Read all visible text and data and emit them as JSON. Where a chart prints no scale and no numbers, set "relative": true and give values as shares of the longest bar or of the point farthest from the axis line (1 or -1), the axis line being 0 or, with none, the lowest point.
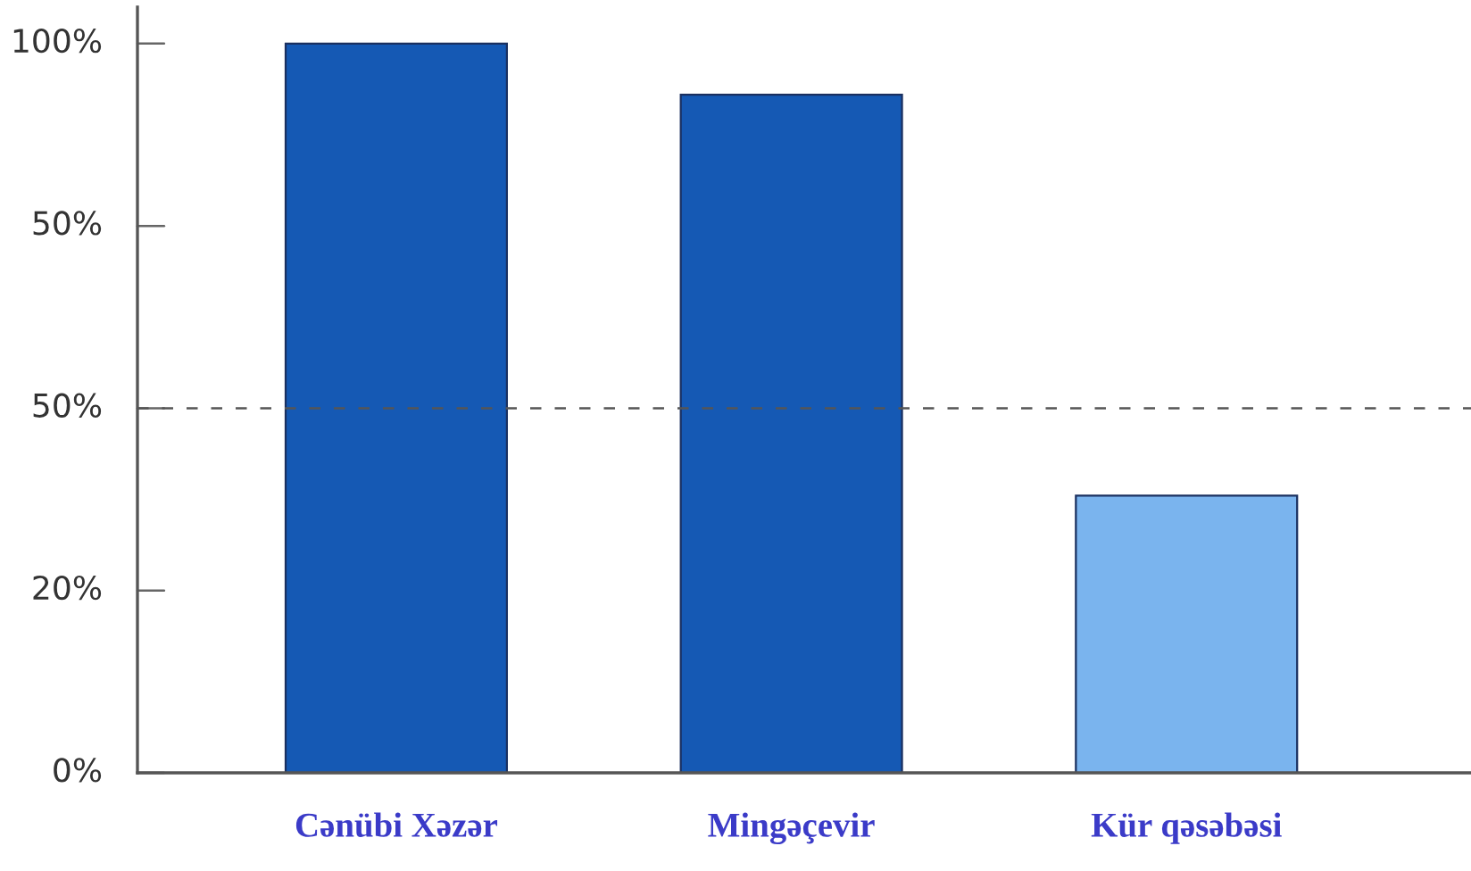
{
  "chart_data": {
    "type": "bar",
    "categories": [
      "Cənübi Xəzər",
      "Mingəçevir",
      "Kür qəsəbəsi"
    ],
    "values": [
      1,
      0.93,
      0.38
    ],
    "colors": [
      "#1559b4",
      "#1559b4",
      "#7ab4ee"
    ],
    "relative": true,
    "annotations": [
      "0%",
      "20%",
      "50%",
      "50%",
      "100%"
    ],
    "ref_lines": [
      {
        "axis": "y",
        "value": 0.5,
        "color": "#555555",
        "line_style": "dashed"
      }
    ],
    "grid": false
  }
}
